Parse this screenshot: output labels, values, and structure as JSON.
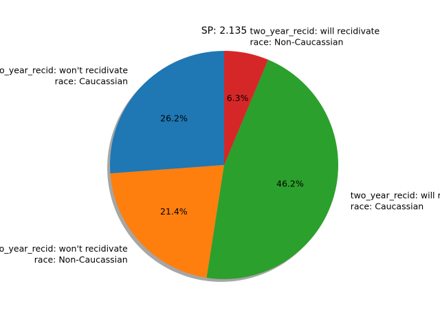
{
  "chart_data": {
    "type": "pie",
    "title": "SP: 2.135",
    "start_angle_deg": 90,
    "direction": "counterclockwise",
    "shadow": true,
    "slices": [
      {
        "label_lines": [
          "two_year_recid: won't recidivate",
          "race: Caucassian"
        ],
        "value": 26.2,
        "pct_label": "26.2%",
        "color": "#1f77b4"
      },
      {
        "label_lines": [
          "two_year_recid: won't recidivate",
          "race: Non-Caucassian"
        ],
        "value": 21.4,
        "pct_label": "21.4%",
        "color": "#ff7f0e"
      },
      {
        "label_lines": [
          "two_year_recid: will recidivate",
          "race: Caucassian"
        ],
        "value": 46.2,
        "pct_label": "46.2%",
        "color": "#2ca02c"
      },
      {
        "label_lines": [
          "two_year_recid: will recidivate",
          "race: Non-Caucassian"
        ],
        "value": 6.3,
        "pct_label": "6.3%",
        "color": "#d62728"
      }
    ]
  }
}
